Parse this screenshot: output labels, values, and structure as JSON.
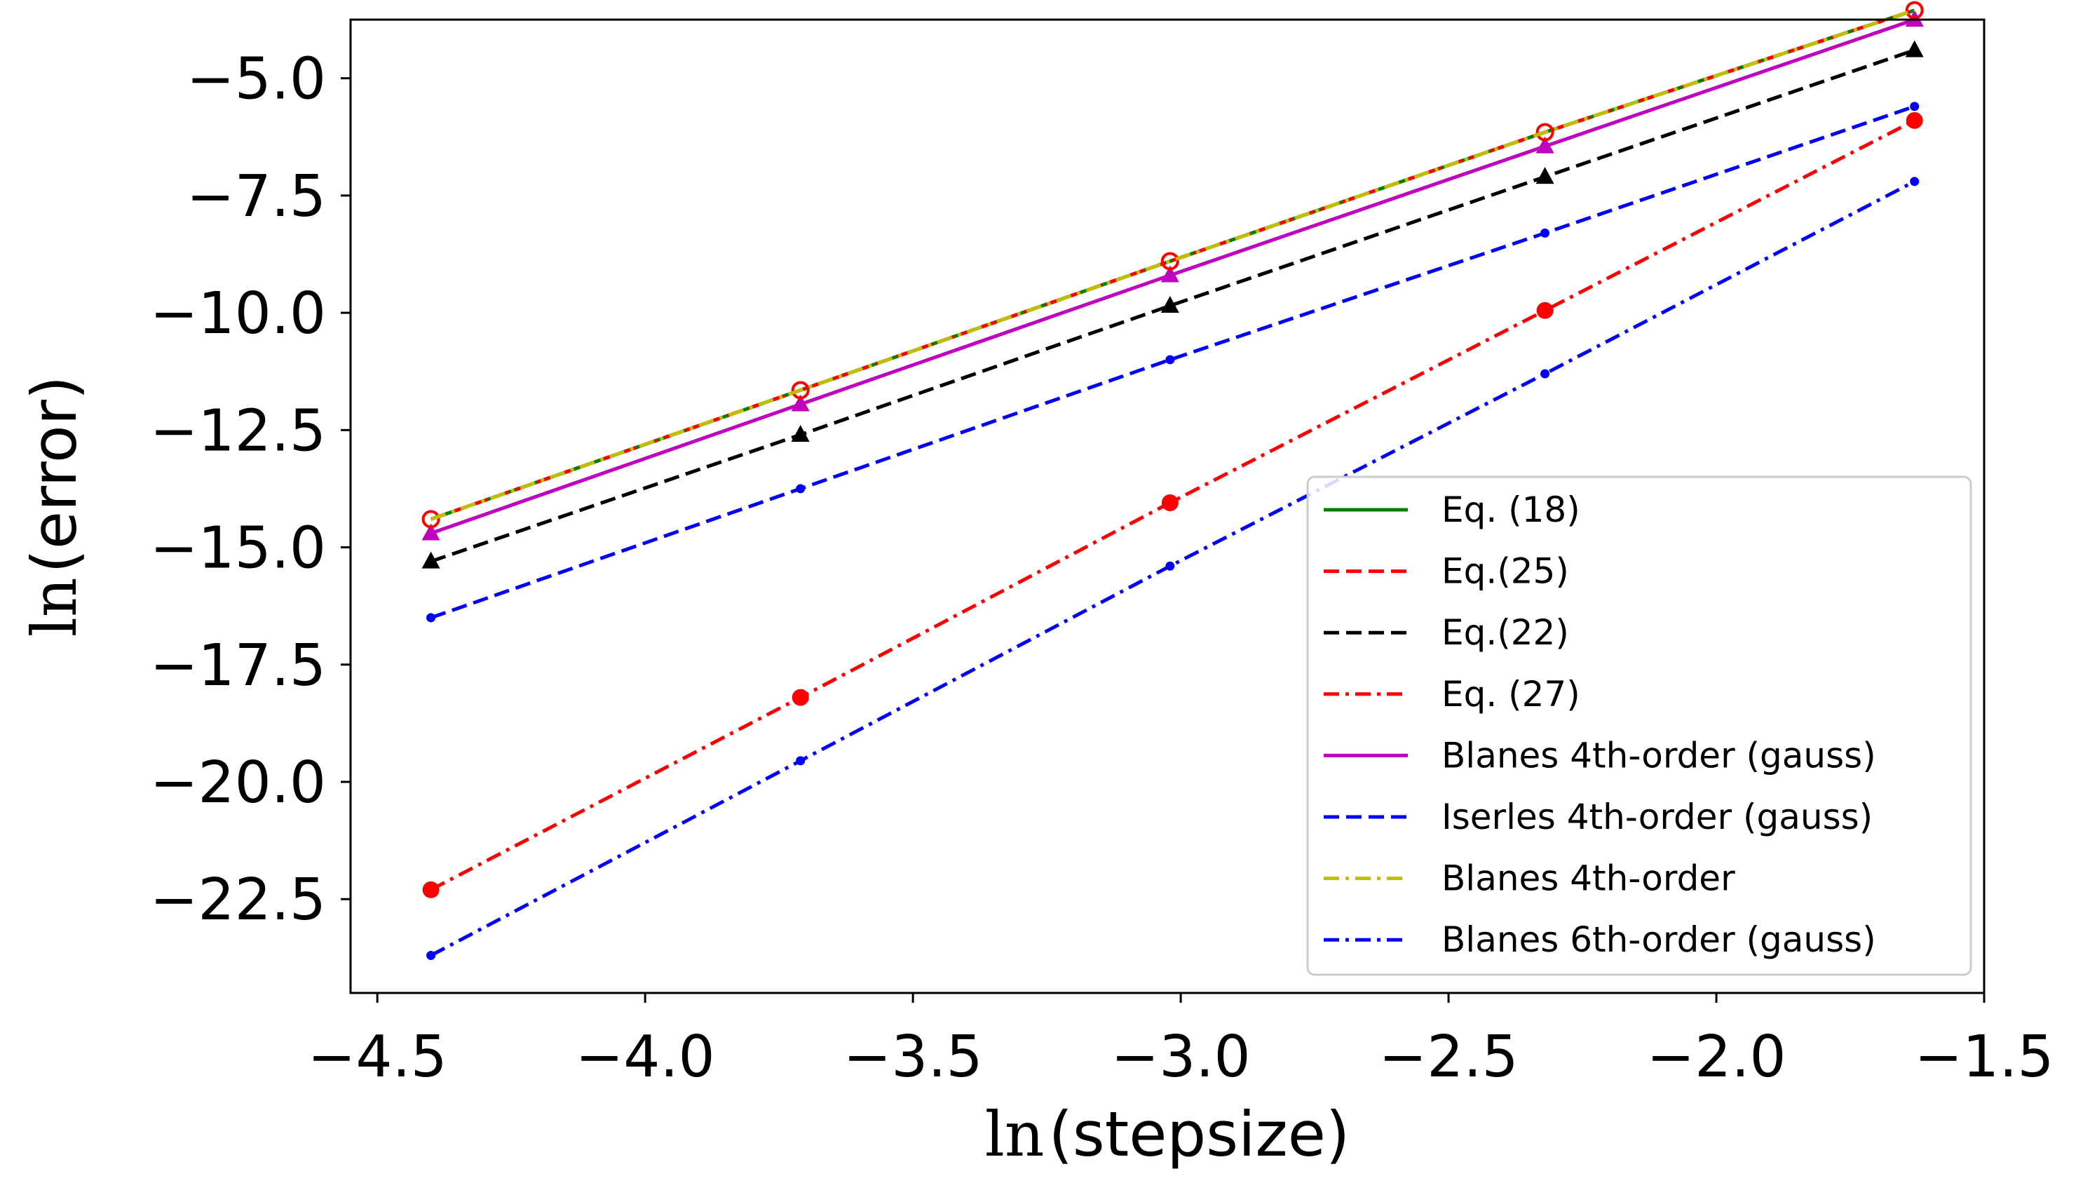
{
  "chart_data": {
    "type": "line",
    "title": "",
    "xlabel_fn": "ln",
    "xlabel_arg": "(stepsize)",
    "ylabel_fn": "ln",
    "ylabel_arg": "(error)",
    "xlim": [
      -4.55,
      -1.5
    ],
    "ylim": [
      -24.5,
      -3.75
    ],
    "xticks": [
      -4.5,
      -4.0,
      -3.5,
      -3.0,
      -2.5,
      -2.0,
      -1.5
    ],
    "xtick_labels": [
      "−4.5",
      "−4.0",
      "−3.5",
      "−3.0",
      "−2.5",
      "−2.0",
      "−1.5"
    ],
    "yticks": [
      -5.0,
      -7.5,
      -10.0,
      -12.5,
      -15.0,
      -17.5,
      -20.0,
      -22.5
    ],
    "ytick_labels": [
      "−5.0",
      "−7.5",
      "−10.0",
      "−12.5",
      "−15.0",
      "−17.5",
      "−20.0",
      "−22.5"
    ],
    "legend_position": "lower-right",
    "x": [
      -4.4,
      -3.71,
      -3.02,
      -2.32,
      -1.63
    ],
    "series": [
      {
        "name": "Eq. (18)",
        "color": "#008000",
        "dash": "",
        "marker": "none",
        "values": [
          -14.4,
          -11.65,
          -8.9,
          -6.15,
          -3.55
        ]
      },
      {
        "name": "Eq.(25)",
        "color": "#ff0000",
        "dash": "dashed",
        "marker": "circle-open",
        "values": [
          -14.4,
          -11.65,
          -8.9,
          -6.15,
          -3.55
        ]
      },
      {
        "name": "Eq.(22)",
        "color": "#000000",
        "dash": "dashed",
        "marker": "triangle",
        "values": [
          -15.3,
          -12.6,
          -9.85,
          -7.1,
          -4.4
        ]
      },
      {
        "name": "Eq. (27)",
        "color": "#ff0000",
        "dash": "dashdot",
        "marker": "circle",
        "values": [
          -22.3,
          -18.2,
          -14.05,
          -9.95,
          -5.9
        ]
      },
      {
        "name": "Blanes 4th-order (gauss)",
        "color": "#bf00bf",
        "dash": "",
        "marker": "triangle",
        "values": [
          -14.7,
          -11.95,
          -9.2,
          -6.45,
          -3.75
        ]
      },
      {
        "name": "Iserles 4th-order (gauss)",
        "color": "#0000ff",
        "dash": "dashed",
        "marker": "dot",
        "values": [
          -16.5,
          -13.75,
          -11.0,
          -8.3,
          -5.6
        ]
      },
      {
        "name": "Blanes 4th-order",
        "color": "#bfbf00",
        "dash": "dashdot",
        "marker": "none",
        "values": [
          -14.4,
          -11.65,
          -8.9,
          -6.15,
          -3.55
        ]
      },
      {
        "name": "Blanes 6th-order (gauss)",
        "color": "#0000ff",
        "dash": "dashdot",
        "marker": "dot",
        "values": [
          -23.7,
          -19.55,
          -15.4,
          -11.3,
          -7.2
        ]
      }
    ]
  }
}
